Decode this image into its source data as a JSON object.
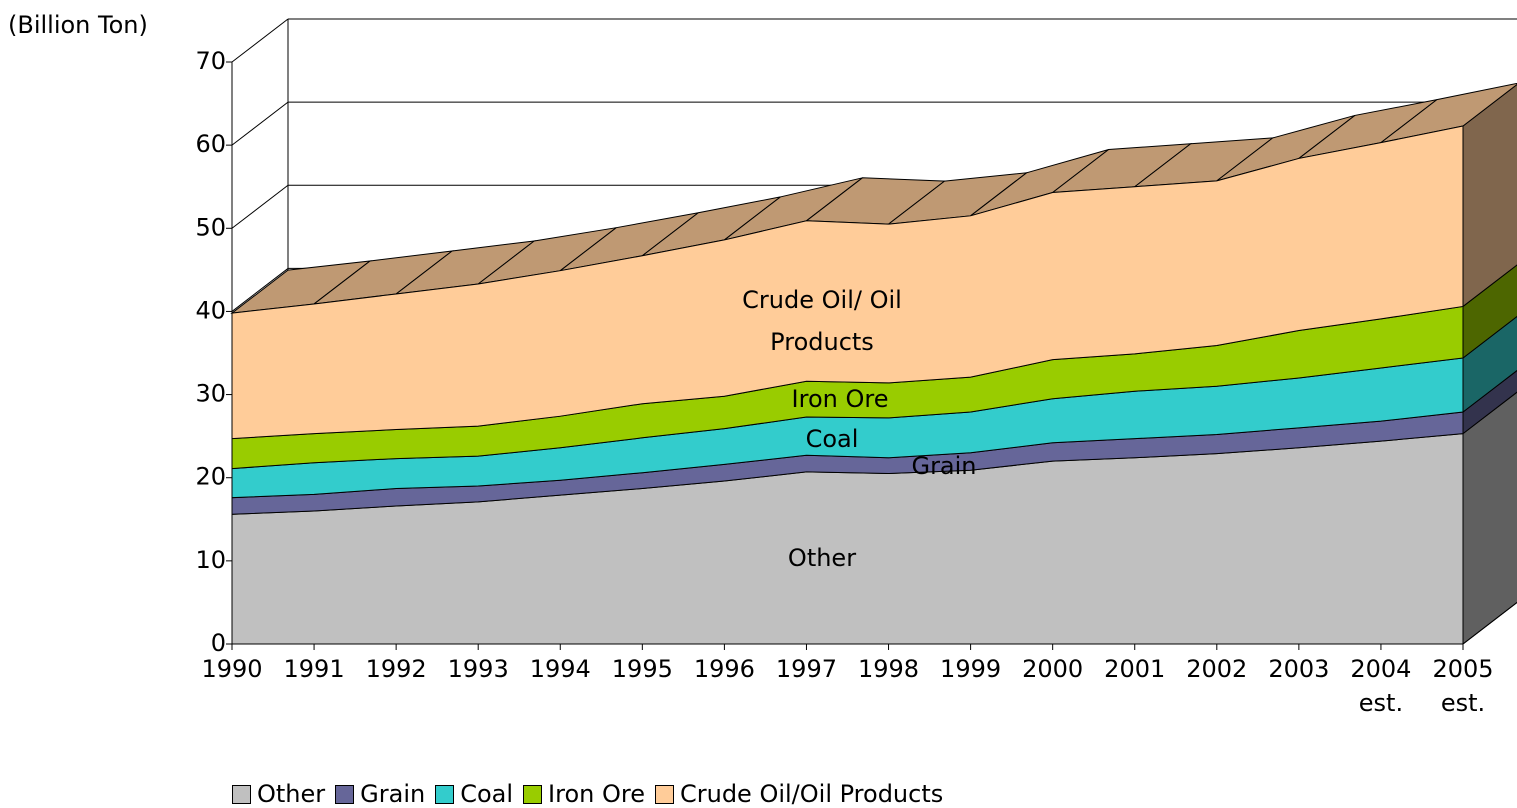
{
  "chart_data": {
    "type": "stacked_area_3d",
    "y_axis_label": "(Billion Ton)",
    "categories": [
      "1990",
      "1991",
      "1992",
      "1993",
      "1994",
      "1995",
      "1996",
      "1997",
      "1998",
      "1999",
      "2000",
      "2001",
      "2002",
      "2003",
      "2004\nest.",
      "2005\nest."
    ],
    "series": [
      {
        "name": "Other",
        "color": "#c0c0c0",
        "values": [
          15.6,
          16.0,
          16.6,
          17.1,
          17.9,
          18.7,
          19.6,
          20.7,
          20.5,
          20.9,
          22.0,
          22.4,
          22.9,
          23.6,
          24.4,
          25.3
        ]
      },
      {
        "name": "Grain",
        "color": "#666699",
        "values": [
          2.0,
          2.0,
          2.1,
          1.9,
          1.8,
          1.9,
          2.0,
          2.0,
          1.9,
          2.1,
          2.2,
          2.3,
          2.3,
          2.4,
          2.4,
          2.6
        ]
      },
      {
        "name": "Coal",
        "color": "#33cccc",
        "values": [
          3.5,
          3.8,
          3.6,
          3.6,
          3.9,
          4.2,
          4.3,
          4.6,
          4.8,
          4.9,
          5.3,
          5.7,
          5.8,
          6.0,
          6.4,
          6.5
        ]
      },
      {
        "name": "Iron Ore",
        "color": "#99cc00",
        "values": [
          3.6,
          3.5,
          3.5,
          3.6,
          3.8,
          4.1,
          3.9,
          4.3,
          4.2,
          4.2,
          4.7,
          4.5,
          4.9,
          5.7,
          5.9,
          6.2
        ]
      },
      {
        "name": "Crude Oil/Oil Products",
        "color": "#ffcc99",
        "values": [
          15.1,
          15.6,
          16.3,
          17.1,
          17.5,
          17.8,
          18.8,
          19.3,
          19.1,
          19.4,
          20.1,
          20.1,
          19.8,
          20.7,
          21.2,
          21.7
        ]
      }
    ],
    "annotations": [
      "Other",
      "Grain",
      "Coal",
      "Iron Ore",
      "Crude Oil/ Oil Products"
    ],
    "ylim": [
      0,
      70
    ],
    "yticks": [
      0,
      10,
      20,
      30,
      40,
      50,
      60,
      70
    ],
    "grid": true
  }
}
